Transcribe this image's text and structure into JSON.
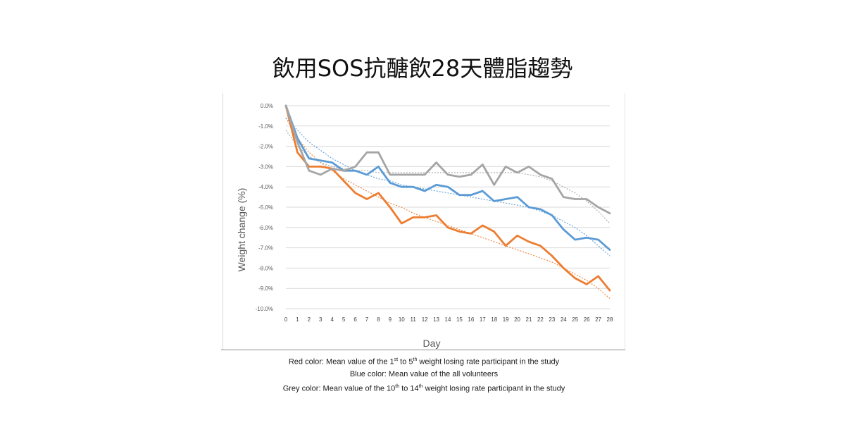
{
  "page": {
    "title": "飲用SOS抗醣飲28天體脂趨勢"
  },
  "caption": {
    "red_line_pre": "Red color: Mean value of the 1",
    "red_line_sup1": "st",
    "red_line_mid": " to 5",
    "red_line_sup2": "th",
    "red_line_post": " weight losing rate participant in the study",
    "blue_line": "Blue color: Mean value of the all volunteers",
    "grey_line_pre": "Grey color: Mean value of the 10",
    "grey_line_sup1": "th",
    "grey_line_mid": " to 14",
    "grey_line_sup2": "th",
    "grey_line_post": " weight losing rate participant in the study"
  },
  "chart_data": {
    "type": "line",
    "xlabel": "Day",
    "ylabel": "Weight change (%)",
    "x": [
      0,
      1,
      2,
      3,
      4,
      5,
      6,
      7,
      8,
      9,
      10,
      11,
      12,
      13,
      14,
      15,
      16,
      17,
      18,
      19,
      20,
      21,
      22,
      23,
      24,
      25,
      26,
      27,
      28
    ],
    "ylim": [
      -10,
      0
    ],
    "yticks": [
      {
        "value": 0,
        "label": "0.0%"
      },
      {
        "value": -1,
        "label": "-1.0%"
      },
      {
        "value": -2,
        "label": "-2.0%"
      },
      {
        "value": -3,
        "label": "-3.0%"
      },
      {
        "value": -4,
        "label": "-4.0%"
      },
      {
        "value": -5,
        "label": "-5.0%"
      },
      {
        "value": -6,
        "label": "-6.0%"
      },
      {
        "value": -7,
        "label": "-7.0%"
      },
      {
        "value": -8,
        "label": "-8.0%"
      },
      {
        "value": -9,
        "label": "-9.0%"
      },
      {
        "value": -10,
        "label": "-10.0%"
      }
    ],
    "grid": true,
    "series": [
      {
        "color": "#ed7d31",
        "values": [
          0,
          -2.3,
          -3.0,
          -3.0,
          -3.1,
          -3.7,
          -4.3,
          -4.6,
          -4.3,
          -5.0,
          -5.8,
          -5.5,
          -5.5,
          -5.4,
          -6.0,
          -6.2,
          -6.3,
          -5.9,
          -6.2,
          -6.9,
          -6.4,
          -6.7,
          -6.9,
          -7.4,
          -8.0,
          -8.5,
          -8.8,
          -8.4,
          -9.1
        ]
      },
      {
        "color": "#5b9bd5",
        "values": [
          0,
          -1.6,
          -2.6,
          -2.7,
          -2.8,
          -3.2,
          -3.2,
          -3.4,
          -3.0,
          -3.8,
          -4.0,
          -4.0,
          -4.2,
          -3.9,
          -4.0,
          -4.4,
          -4.4,
          -4.2,
          -4.7,
          -4.6,
          -4.5,
          -5.0,
          -5.1,
          -5.4,
          -6.1,
          -6.6,
          -6.5,
          -6.6,
          -7.1
        ]
      },
      {
        "color": "#a5a5a5",
        "values": [
          0,
          -1.8,
          -3.2,
          -3.4,
          -3.1,
          -3.2,
          -3.0,
          -2.3,
          -2.3,
          -3.4,
          -3.4,
          -3.4,
          -3.4,
          -2.8,
          -3.4,
          -3.5,
          -3.4,
          -2.9,
          -3.9,
          -3.0,
          -3.3,
          -3.0,
          -3.4,
          -3.6,
          -4.5,
          -4.6,
          -4.6,
          -5.0,
          -5.3
        ]
      }
    ],
    "trendlines": [
      {
        "color": "#ed7d31",
        "style": "dotted",
        "values": [
          -0.6,
          -1.6,
          -2.3,
          -2.8,
          -3.2,
          -3.6,
          -3.9,
          -4.2,
          -4.5,
          -4.8,
          -5.0,
          -5.3,
          -5.5,
          -5.7,
          -5.9,
          -6.1,
          -6.3,
          -6.5,
          -6.7,
          -6.9,
          -7.1,
          -7.3,
          -7.5,
          -7.7,
          -8.0,
          -8.3,
          -8.6,
          -9.0,
          -9.5
        ]
      },
      {
        "color": "#5b9bd5",
        "style": "dotted",
        "values": [
          -0.6,
          -1.2,
          -1.8,
          -2.2,
          -2.6,
          -2.9,
          -3.2,
          -3.4,
          -3.6,
          -3.7,
          -3.9,
          -4.0,
          -4.1,
          -4.2,
          -4.3,
          -4.4,
          -4.5,
          -4.6,
          -4.7,
          -4.8,
          -4.9,
          -5.0,
          -5.2,
          -5.4,
          -5.7,
          -6.0,
          -6.4,
          -6.9,
          -7.4
        ]
      },
      {
        "color": "#a5a5a5",
        "style": "dotted",
        "values": [
          -1.2,
          -2.0,
          -2.5,
          -2.8,
          -3.0,
          -3.1,
          -3.2,
          -3.2,
          -3.3,
          -3.3,
          -3.3,
          -3.3,
          -3.3,
          -3.3,
          -3.3,
          -3.3,
          -3.3,
          -3.3,
          -3.3,
          -3.3,
          -3.3,
          -3.4,
          -3.5,
          -3.7,
          -4.0,
          -4.3,
          -4.7,
          -5.2,
          -5.8
        ]
      }
    ]
  }
}
